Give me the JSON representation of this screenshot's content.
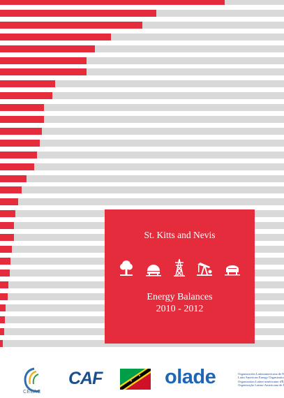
{
  "cover": {
    "title": "St. Kitts and Nevis",
    "subtitle": "Energy Balances",
    "years": "2010 - 2012",
    "icons": [
      "tree-icon",
      "biogas-dome-icon",
      "power-tower-icon",
      "oil-pump-icon",
      "fuel-tank-icon"
    ],
    "box_color": "#e42c3c"
  },
  "decorative_bars": {
    "fill_color": "#e42c3c",
    "track_color": "#d9d9da",
    "fractions": [
      0.79,
      0.55,
      0.5,
      0.39,
      0.335,
      0.305,
      0.305,
      0.195,
      0.185,
      0.155,
      0.155,
      0.147,
      0.14,
      0.13,
      0.12,
      0.093,
      0.075,
      0.065,
      0.055,
      0.05,
      0.048,
      0.042,
      0.038,
      0.035,
      0.03,
      0.027,
      0.02,
      0.018,
      0.015,
      0.01
    ]
  },
  "logos": {
    "celac": "CELAC",
    "caf": "CAF",
    "flag_icon": "st-kitts-nevis-flag-icon",
    "olade": "olade",
    "olade_desc": [
      "Organización Latinoamericana de Energía",
      "Latin American Energy Organization",
      "Organisation Latino-américaine d'Énergie",
      "Organização Latino-Americana de Energia"
    ]
  }
}
